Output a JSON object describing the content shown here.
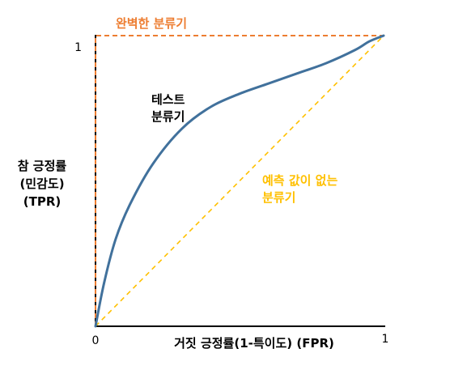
{
  "chart_data": {
    "type": "line",
    "title": "",
    "xlabel": "거짓 긍정률(1-특이도) (FPR)",
    "ylabel_lines": [
      "참 긍정률",
      "(민감도)",
      "(TPR)"
    ],
    "xlim": [
      0,
      1
    ],
    "ylim": [
      0,
      1
    ],
    "x_ticks": [
      "0",
      "1"
    ],
    "y_ticks": [
      "1"
    ],
    "grid": false,
    "series": [
      {
        "name": "완벽한 분류기",
        "style": "dashed",
        "color": "#ED7D31",
        "x": [
          0,
          0,
          1
        ],
        "y": [
          0,
          1,
          1
        ]
      },
      {
        "name": "테스트 분류기",
        "style": "solid",
        "color": "#41719C",
        "x": [
          0,
          0.03,
          0.07,
          0.12,
          0.2,
          0.3,
          0.4,
          0.5,
          0.6,
          0.7,
          0.8,
          0.9,
          0.95,
          1.0
        ],
        "y": [
          0,
          0.15,
          0.3,
          0.42,
          0.56,
          0.68,
          0.755,
          0.8,
          0.835,
          0.87,
          0.905,
          0.95,
          0.98,
          1.0
        ]
      },
      {
        "name": "예측 값이 없는 분류기",
        "style": "dashed",
        "color": "#FFC000",
        "x": [
          0,
          1
        ],
        "y": [
          0,
          1
        ]
      }
    ],
    "annotations": {
      "perfect": "완벽한 분류기",
      "test_line1": "테스트",
      "test_line2": "분류기",
      "random_line1": "예측 값이 없는",
      "random_line2": "분류기"
    },
    "axis_color": "#000000"
  }
}
